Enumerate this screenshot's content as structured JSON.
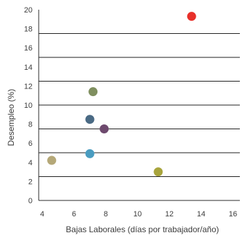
{
  "chart_data": {
    "type": "scatter",
    "title": "",
    "xlabel": "Bajas Laborales (días por trabajador/año)",
    "ylabel": "Desempleo (%)",
    "xlim": [
      4,
      16
    ],
    "ylim": [
      0,
      20
    ],
    "x_ticks": [
      "4",
      "6",
      "8",
      "10",
      "12",
      "14",
      "16"
    ],
    "y_ticks": [
      "0",
      "2",
      "4",
      "6",
      "8",
      "10",
      "12",
      "14",
      "16",
      "18",
      "20"
    ],
    "grid": "horizontal",
    "points": [
      {
        "x": 13.4,
        "y": 19.3,
        "color": "#e8302a"
      },
      {
        "x": 7.2,
        "y": 11.4,
        "color": "#7f8f5f"
      },
      {
        "x": 7.0,
        "y": 8.5,
        "color": "#4a6a84"
      },
      {
        "x": 7.9,
        "y": 7.5,
        "color": "#6e4a6e"
      },
      {
        "x": 7.0,
        "y": 4.9,
        "color": "#4a9cc0"
      },
      {
        "x": 4.6,
        "y": 4.2,
        "color": "#b5a878"
      },
      {
        "x": 11.3,
        "y": 3.0,
        "color": "#a8a43c"
      }
    ]
  }
}
